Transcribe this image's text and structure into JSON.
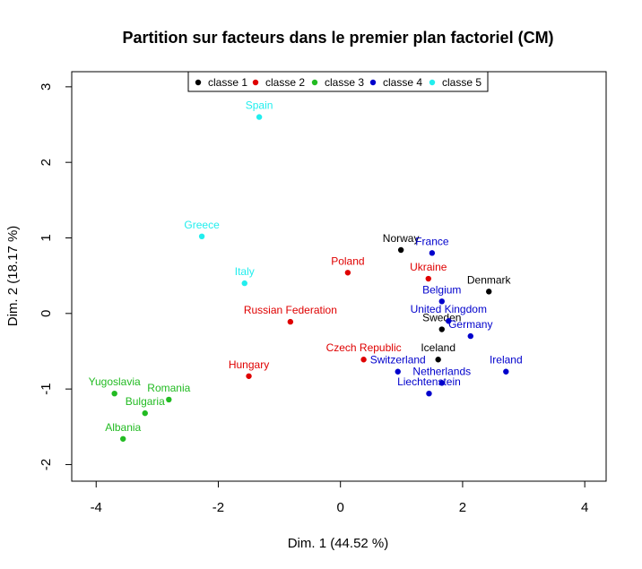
{
  "chart_data": {
    "type": "scatter",
    "title": "Partition sur facteurs dans le premier plan factoriel (CM)",
    "xlabel": "Dim. 1 (44.52 %)",
    "ylabel": "Dim. 2 (18.17 %)",
    "xlim": [
      -4.4,
      4.35
    ],
    "ylim": [
      -2.22,
      3.2
    ],
    "xticks": [
      -4,
      -2,
      0,
      2,
      4
    ],
    "yticks": [
      -2,
      -1,
      0,
      1,
      2,
      3
    ],
    "grid": false,
    "legend_position": "top-center",
    "series": [
      {
        "name": "classe 1",
        "color": "#000000",
        "points": [
          {
            "label": "Norway",
            "x": 0.99,
            "y": 0.84
          },
          {
            "label": "Denmark",
            "x": 2.43,
            "y": 0.29
          },
          {
            "label": "Sweden",
            "x": 1.66,
            "y": -0.21
          },
          {
            "label": "Iceland",
            "x": 1.6,
            "y": -0.61
          }
        ]
      },
      {
        "name": "classe 2",
        "color": "#df0000",
        "points": [
          {
            "label": "Poland",
            "x": 0.12,
            "y": 0.54
          },
          {
            "label": "Ukraine",
            "x": 1.44,
            "y": 0.46
          },
          {
            "label": "Russian Federation",
            "x": -0.82,
            "y": -0.11
          },
          {
            "label": "Czech Republic",
            "x": 0.38,
            "y": -0.61
          },
          {
            "label": "Hungary",
            "x": -1.5,
            "y": -0.83
          }
        ]
      },
      {
        "name": "classe 3",
        "color": "#22bb22",
        "points": [
          {
            "label": "Yugoslavia",
            "x": -3.7,
            "y": -1.06
          },
          {
            "label": "Romania",
            "x": -2.81,
            "y": -1.14
          },
          {
            "label": "Bulgaria",
            "x": -3.2,
            "y": -1.32
          },
          {
            "label": "Albania",
            "x": -3.56,
            "y": -1.66
          }
        ]
      },
      {
        "name": "classe 4",
        "color": "#0000cc",
        "points": [
          {
            "label": "France",
            "x": 1.5,
            "y": 0.8
          },
          {
            "label": "Belgium",
            "x": 1.66,
            "y": 0.16
          },
          {
            "label": "United Kingdom",
            "x": 1.77,
            "y": -0.1
          },
          {
            "label": "Germany",
            "x": 2.13,
            "y": -0.3
          },
          {
            "label": "Switzerland",
            "x": 0.94,
            "y": -0.77
          },
          {
            "label": "Ireland",
            "x": 2.71,
            "y": -0.77
          },
          {
            "label": "Netherlands",
            "x": 1.66,
            "y": -0.92
          },
          {
            "label": "Liechtenstein",
            "x": 1.45,
            "y": -1.06
          }
        ]
      },
      {
        "name": "classe 5",
        "color": "#22eeee",
        "points": [
          {
            "label": "Spain",
            "x": -1.33,
            "y": 2.6
          },
          {
            "label": "Greece",
            "x": -2.27,
            "y": 1.02
          },
          {
            "label": "Italy",
            "x": -1.57,
            "y": 0.4
          }
        ]
      }
    ]
  }
}
